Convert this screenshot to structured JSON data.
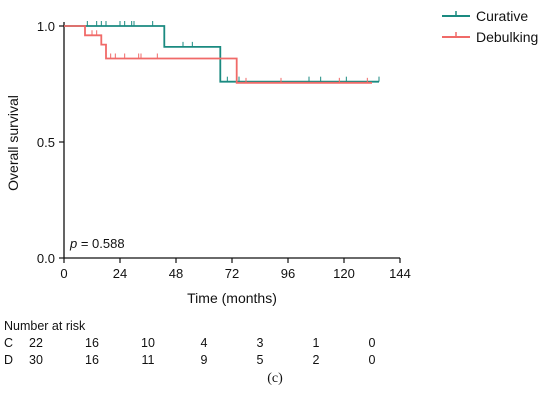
{
  "chart_data": {
    "type": "line",
    "subtype": "kaplan-meier",
    "ylabel": "Overall survival",
    "xlabel": "Time (months)",
    "xlim": [
      0,
      144
    ],
    "ylim": [
      0,
      1.0
    ],
    "x_ticks": [
      0,
      24,
      48,
      72,
      96,
      120,
      144
    ],
    "x_tick_labels": [
      "0",
      "24",
      "48",
      "72",
      "96",
      "120",
      "144"
    ],
    "y_ticks": [
      0,
      0.5,
      1.0
    ],
    "y_tick_labels": [
      "0.0",
      "0.5",
      "1.0"
    ],
    "grid": false,
    "legend_position": "top-right",
    "annotation": {
      "prefix": "p",
      "text": " = 0.588"
    },
    "series": [
      {
        "name": "Curative",
        "color": "#1a8a80",
        "steps": [
          [
            0,
            1.0
          ],
          [
            43,
            1.0
          ],
          [
            43,
            0.91
          ],
          [
            67,
            0.91
          ],
          [
            67,
            0.76
          ],
          [
            135,
            0.76
          ]
        ],
        "censored": [
          [
            10,
            1.0
          ],
          [
            14,
            1.0
          ],
          [
            16,
            1.0
          ],
          [
            18,
            1.0
          ],
          [
            24,
            1.0
          ],
          [
            26,
            1.0
          ],
          [
            29,
            1.0
          ],
          [
            30,
            1.0
          ],
          [
            38,
            1.0
          ],
          [
            51,
            0.91
          ],
          [
            55,
            0.91
          ],
          [
            70,
            0.76
          ],
          [
            75,
            0.76
          ],
          [
            105,
            0.76
          ],
          [
            110,
            0.76
          ],
          [
            121,
            0.76
          ],
          [
            135,
            0.76
          ]
        ]
      },
      {
        "name": "Debulking",
        "color": "#f06a68",
        "steps": [
          [
            0,
            1.0
          ],
          [
            9,
            1.0
          ],
          [
            9,
            0.96
          ],
          [
            16,
            0.96
          ],
          [
            16,
            0.92
          ],
          [
            18,
            0.92
          ],
          [
            18,
            0.86
          ],
          [
            74,
            0.86
          ],
          [
            74,
            0.755
          ],
          [
            132,
            0.755
          ]
        ],
        "censored": [
          [
            12,
            0.96
          ],
          [
            14,
            0.96
          ],
          [
            20,
            0.86
          ],
          [
            22,
            0.86
          ],
          [
            26,
            0.86
          ],
          [
            32,
            0.86
          ],
          [
            33,
            0.86
          ],
          [
            40,
            0.86
          ],
          [
            78,
            0.755
          ],
          [
            93,
            0.755
          ],
          [
            118,
            0.755
          ],
          [
            130,
            0.755
          ]
        ]
      }
    ],
    "risk_table": {
      "title": "Number at risk",
      "times": [
        0,
        24,
        48,
        72,
        96,
        120,
        144
      ],
      "rows": [
        {
          "label": "C",
          "values": [
            "22",
            "16",
            "10",
            "4",
            "3",
            "1",
            "0"
          ]
        },
        {
          "label": "D",
          "values": [
            "30",
            "16",
            "11",
            "9",
            "5",
            "2",
            "0"
          ]
        }
      ]
    },
    "panel_label": "(c)"
  }
}
